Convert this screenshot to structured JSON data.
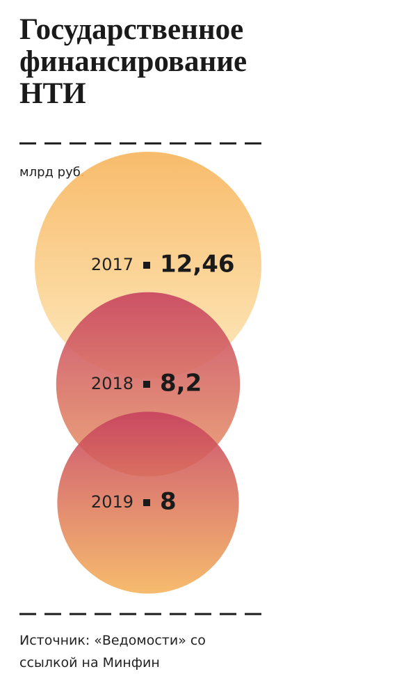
{
  "chart_data": {
    "type": "bubble",
    "title": "Государственное финансирование НТИ",
    "subtitle": "млрд руб.",
    "categories": [
      "2017",
      "2018",
      "2019"
    ],
    "values": [
      12.46,
      8.2,
      8
    ],
    "value_labels": [
      "12,46",
      "8,2",
      "8"
    ],
    "colors": [
      [
        "#f7b257",
        "#fde6b4"
      ],
      [
        "#c63f5e",
        "#e99b68"
      ],
      [
        "#c63f5e",
        "#f5b25a"
      ]
    ],
    "source": "Источник: «Ведомости» со ссылкой на Минфин"
  }
}
